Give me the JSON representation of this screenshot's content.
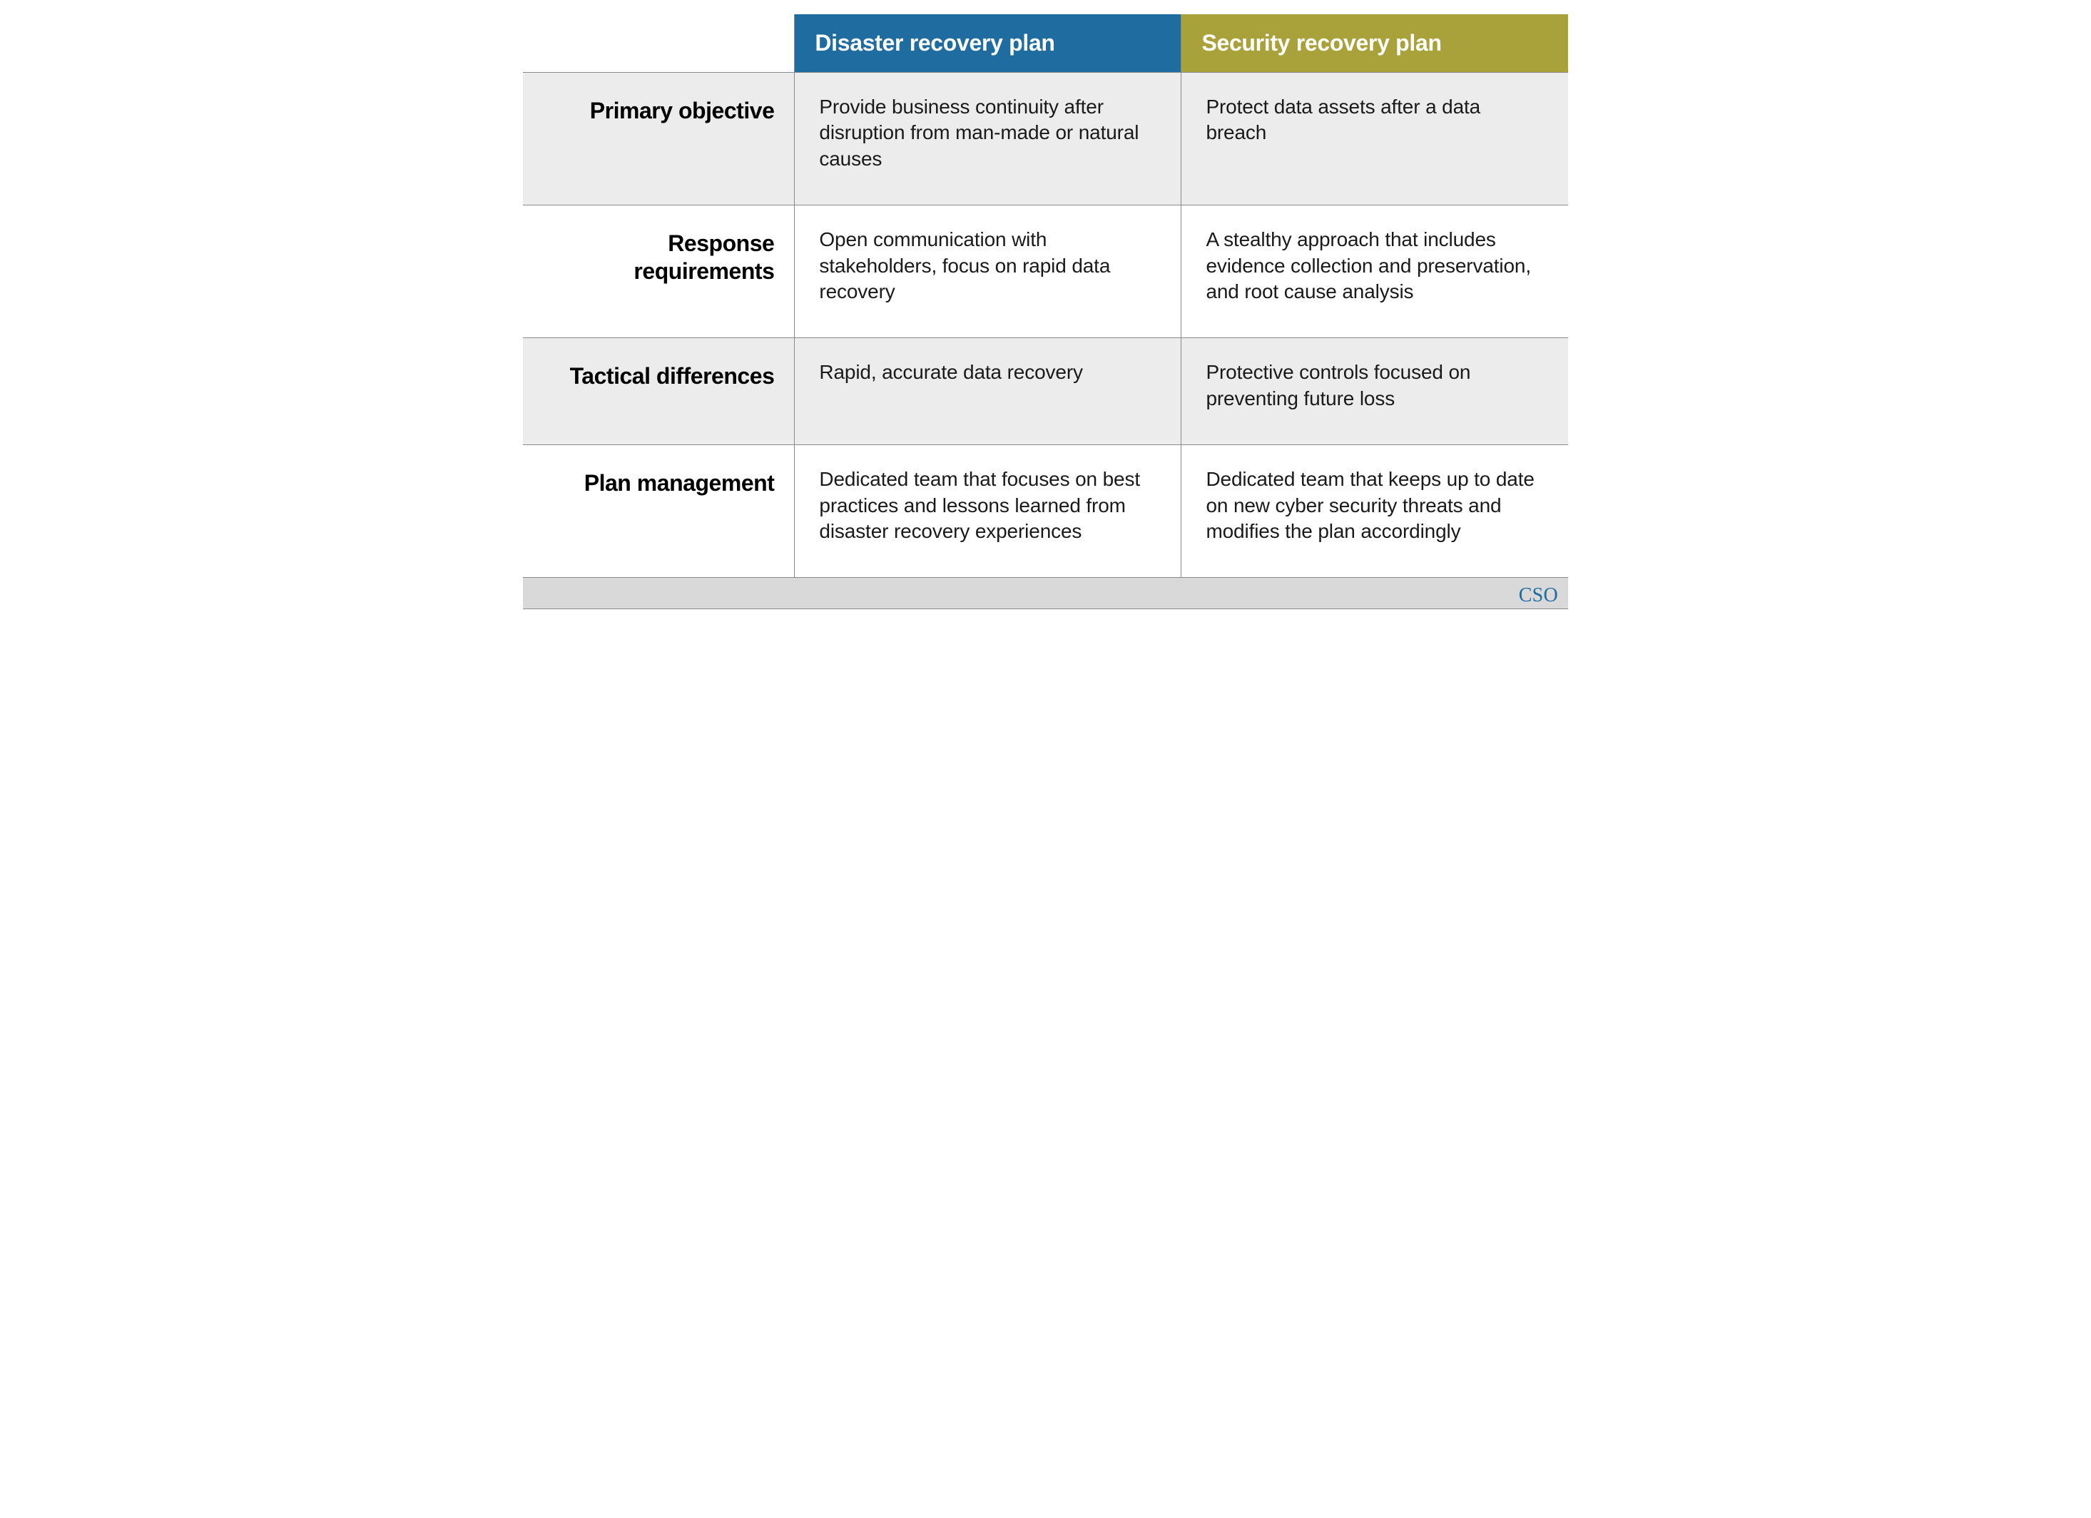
{
  "table": {
    "type": "table",
    "columns": [
      {
        "id": "disaster",
        "label": "Disaster recovery plan",
        "header_bg": "#1f6ca0",
        "header_fg": "#ffffff"
      },
      {
        "id": "security",
        "label": "Security recovery plan",
        "header_bg": "#a9a23a",
        "header_fg": "#ffffff"
      }
    ],
    "rows": [
      {
        "header": "Primary objective",
        "shaded": true,
        "cells": {
          "disaster": "Provide business continuity after disruption from man-made or natural causes",
          "security": "Protect data assets after a data breach"
        }
      },
      {
        "header": "Response requirements",
        "shaded": false,
        "cells": {
          "disaster": "Open communication with stakeholders, focus on rapid data recovery",
          "security": "A stealthy approach that includes evidence collection and preservation, and root cause analysis"
        }
      },
      {
        "header": "Tactical differences",
        "shaded": true,
        "cells": {
          "disaster": "Rapid, accurate data recovery",
          "security": "Protective controls focused on preventing future loss"
        }
      },
      {
        "header": "Plan management",
        "shaded": false,
        "cells": {
          "disaster": "Dedicated team that focuses on best practices and lessons learned from disaster recovery experiences",
          "security": "Dedicated team that keeps up to date on new cyber security threats and modifies the plan accordingly"
        }
      }
    ],
    "column_widths_pct": [
      26,
      37,
      37
    ],
    "border_color": "#8a8a8a",
    "shaded_row_bg": "#ececec",
    "plain_row_bg": "#ffffff",
    "header_fontsize": 32,
    "rowheader_fontsize": 32,
    "cell_fontsize": 28
  },
  "footer": {
    "bar_bg": "#d9d9d9",
    "brand_text": "CSO",
    "brand_color": "#1f6ca0",
    "brand_fontfamily": "serif",
    "brand_fontsize": 28
  }
}
